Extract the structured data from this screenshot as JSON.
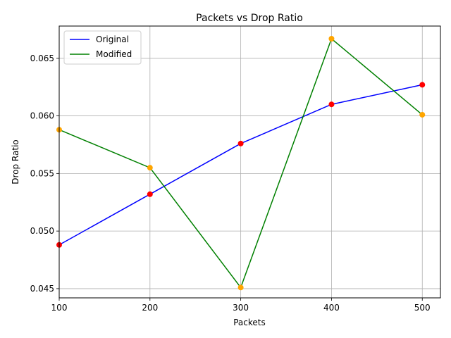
{
  "chart_data": {
    "type": "line",
    "title": "Packets vs Drop Ratio",
    "xlabel": "Packets",
    "ylabel": "Drop Ratio",
    "x": [
      100,
      200,
      300,
      400,
      500
    ],
    "xlim": [
      100,
      520
    ],
    "ylim": [
      0.0442,
      0.0678
    ],
    "xticks": [
      100,
      200,
      300,
      400,
      500
    ],
    "yticks": [
      0.045,
      0.05,
      0.055,
      0.06,
      0.065
    ],
    "ytick_labels": [
      "0.045",
      "0.050",
      "0.055",
      "0.060",
      "0.065"
    ],
    "grid": true,
    "legend_position": "top-left",
    "series": [
      {
        "name": "Original",
        "values": [
          0.0488,
          0.0532,
          0.0576,
          0.061,
          0.0627
        ],
        "line_color": "#0000ff",
        "marker_color": "#ff0000"
      },
      {
        "name": "Modified",
        "values": [
          0.0588,
          0.0555,
          0.0451,
          0.0667,
          0.0601
        ],
        "line_color": "#008000",
        "marker_color": "#ffa500"
      }
    ]
  }
}
